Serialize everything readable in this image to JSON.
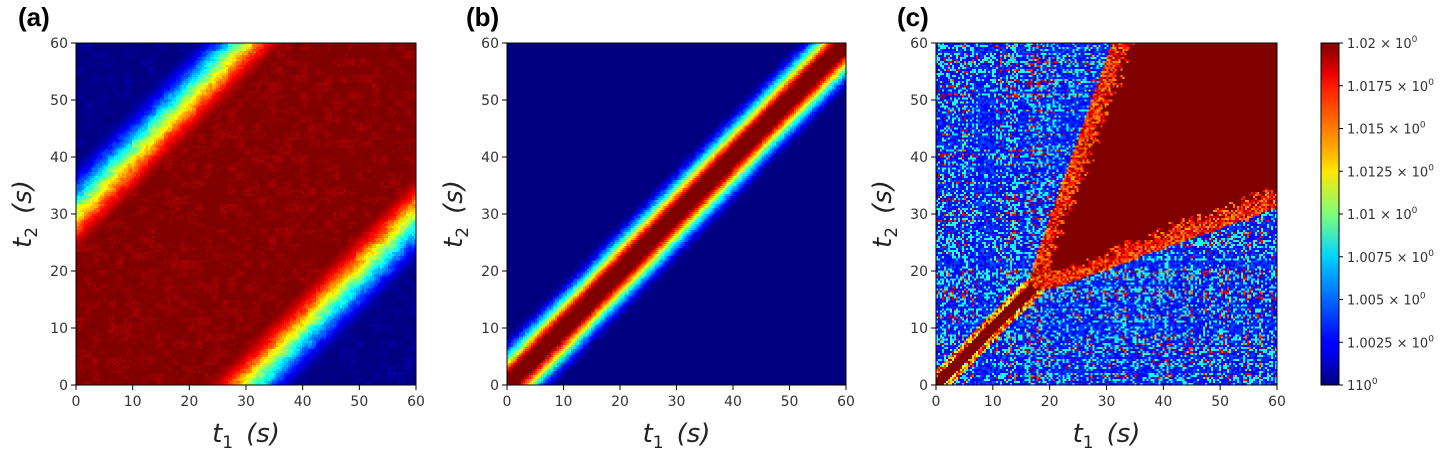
{
  "chart_data": [
    {
      "type": "heatmap",
      "panel_label": "(a)",
      "xlabel": "t1 (s)",
      "ylabel": "t2 (s)",
      "xlim": [
        0,
        60
      ],
      "ylim": [
        0,
        60
      ],
      "x_ticks": [
        "0",
        "10",
        "20",
        "30",
        "40",
        "50",
        "60"
      ],
      "y_ticks": [
        "0",
        "10",
        "20",
        "30",
        "40",
        "50",
        "60"
      ],
      "pattern": "wide diagonal band of maximum value; saturated within about |t1 - t2| < 25 s, decaying to minimum beyond about 40 s"
    },
    {
      "type": "heatmap",
      "panel_label": "(b)",
      "xlabel": "t1 (s)",
      "ylabel": "t2 (s)",
      "xlim": [
        0,
        60
      ],
      "ylim": [
        0,
        60
      ],
      "x_ticks": [
        "0",
        "10",
        "20",
        "30",
        "40",
        "50",
        "60"
      ],
      "y_ticks": [
        "0",
        "10",
        "20",
        "30",
        "40",
        "50",
        "60"
      ],
      "pattern": "narrow diagonal band of maximum value; saturated within about |t1 - t2| < 3 s, decaying to minimum beyond about 10 s"
    },
    {
      "type": "heatmap",
      "panel_label": "(c)",
      "xlabel": "t1 (s)",
      "ylabel": "t2 (s)",
      "xlim": [
        0,
        60
      ],
      "ylim": [
        0,
        60
      ],
      "x_ticks": [
        "0",
        "10",
        "20",
        "30",
        "40",
        "50",
        "60"
      ],
      "y_ticks": [
        "0",
        "10",
        "20",
        "30",
        "40",
        "50",
        "60"
      ],
      "pattern": "thin diagonal line for t < 17 s, then a large saturated region for t1, t2 > 20 s; noisy low background elsewhere"
    }
  ],
  "colorbar": {
    "colormap": "jet",
    "min": 1.0,
    "max": 1.02,
    "tick_values": [
      1.0,
      1.0025,
      1.005,
      1.0075,
      1.01,
      1.0125,
      1.015,
      1.0175,
      1.02
    ],
    "tick_labels": [
      {
        "mant": "1",
        "times": "",
        "base": "10",
        "exp": "0"
      },
      {
        "mant": "1.0025",
        "times": " × ",
        "base": "10",
        "exp": "0"
      },
      {
        "mant": "1.005",
        "times": " × ",
        "base": "10",
        "exp": "0"
      },
      {
        "mant": "1.0075",
        "times": " × ",
        "base": "10",
        "exp": "0"
      },
      {
        "mant": "1.01",
        "times": " × ",
        "base": "10",
        "exp": "0"
      },
      {
        "mant": "1.0125",
        "times": " × ",
        "base": "10",
        "exp": "0"
      },
      {
        "mant": "1.015",
        "times": " × ",
        "base": "10",
        "exp": "0"
      },
      {
        "mant": "1.0175",
        "times": " × ",
        "base": "10",
        "exp": "0"
      },
      {
        "mant": "1.02",
        "times": " × ",
        "base": "10",
        "exp": "0"
      }
    ]
  },
  "axis_text": {
    "x_symbol": "t",
    "x_sub": "1",
    "y_symbol": "t",
    "y_sub": "2",
    "unit": "(s)"
  }
}
